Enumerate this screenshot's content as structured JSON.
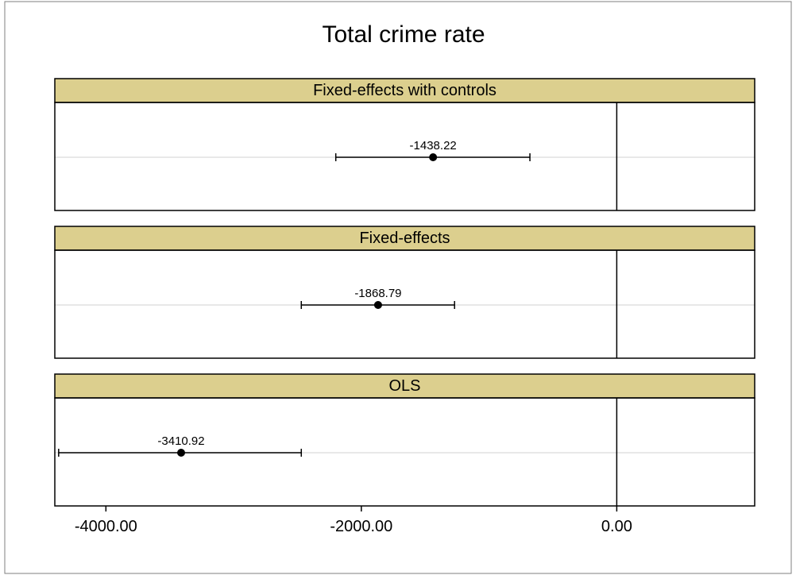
{
  "chart_data": {
    "type": "scatter",
    "title": "Total crime rate",
    "xlabel": "",
    "ylabel": "",
    "xlim": [
      -4400,
      1080
    ],
    "x_ticks": [
      -4000,
      -2000,
      0
    ],
    "x_tick_labels": [
      "-4000.00",
      "-2000.00",
      "0.00"
    ],
    "reference_line_x": 0,
    "grid": false,
    "legend": "none",
    "strip_color": "#dccf8e",
    "point_color": "#000000",
    "reference_line_color": "#000000",
    "guide_line_color": "#d9d9d9",
    "panels": [
      {
        "name": "Fixed-effects with controls",
        "estimate": -1438.22,
        "estimate_label": "-1438.22",
        "ci_low": -2200,
        "ci_high": -680
      },
      {
        "name": "Fixed-effects",
        "estimate": -1868.79,
        "estimate_label": "-1868.79",
        "ci_low": -2470,
        "ci_high": -1270
      },
      {
        "name": "OLS",
        "estimate": -3410.92,
        "estimate_label": "-3410.92",
        "ci_low": -4370,
        "ci_high": -2470
      }
    ]
  }
}
